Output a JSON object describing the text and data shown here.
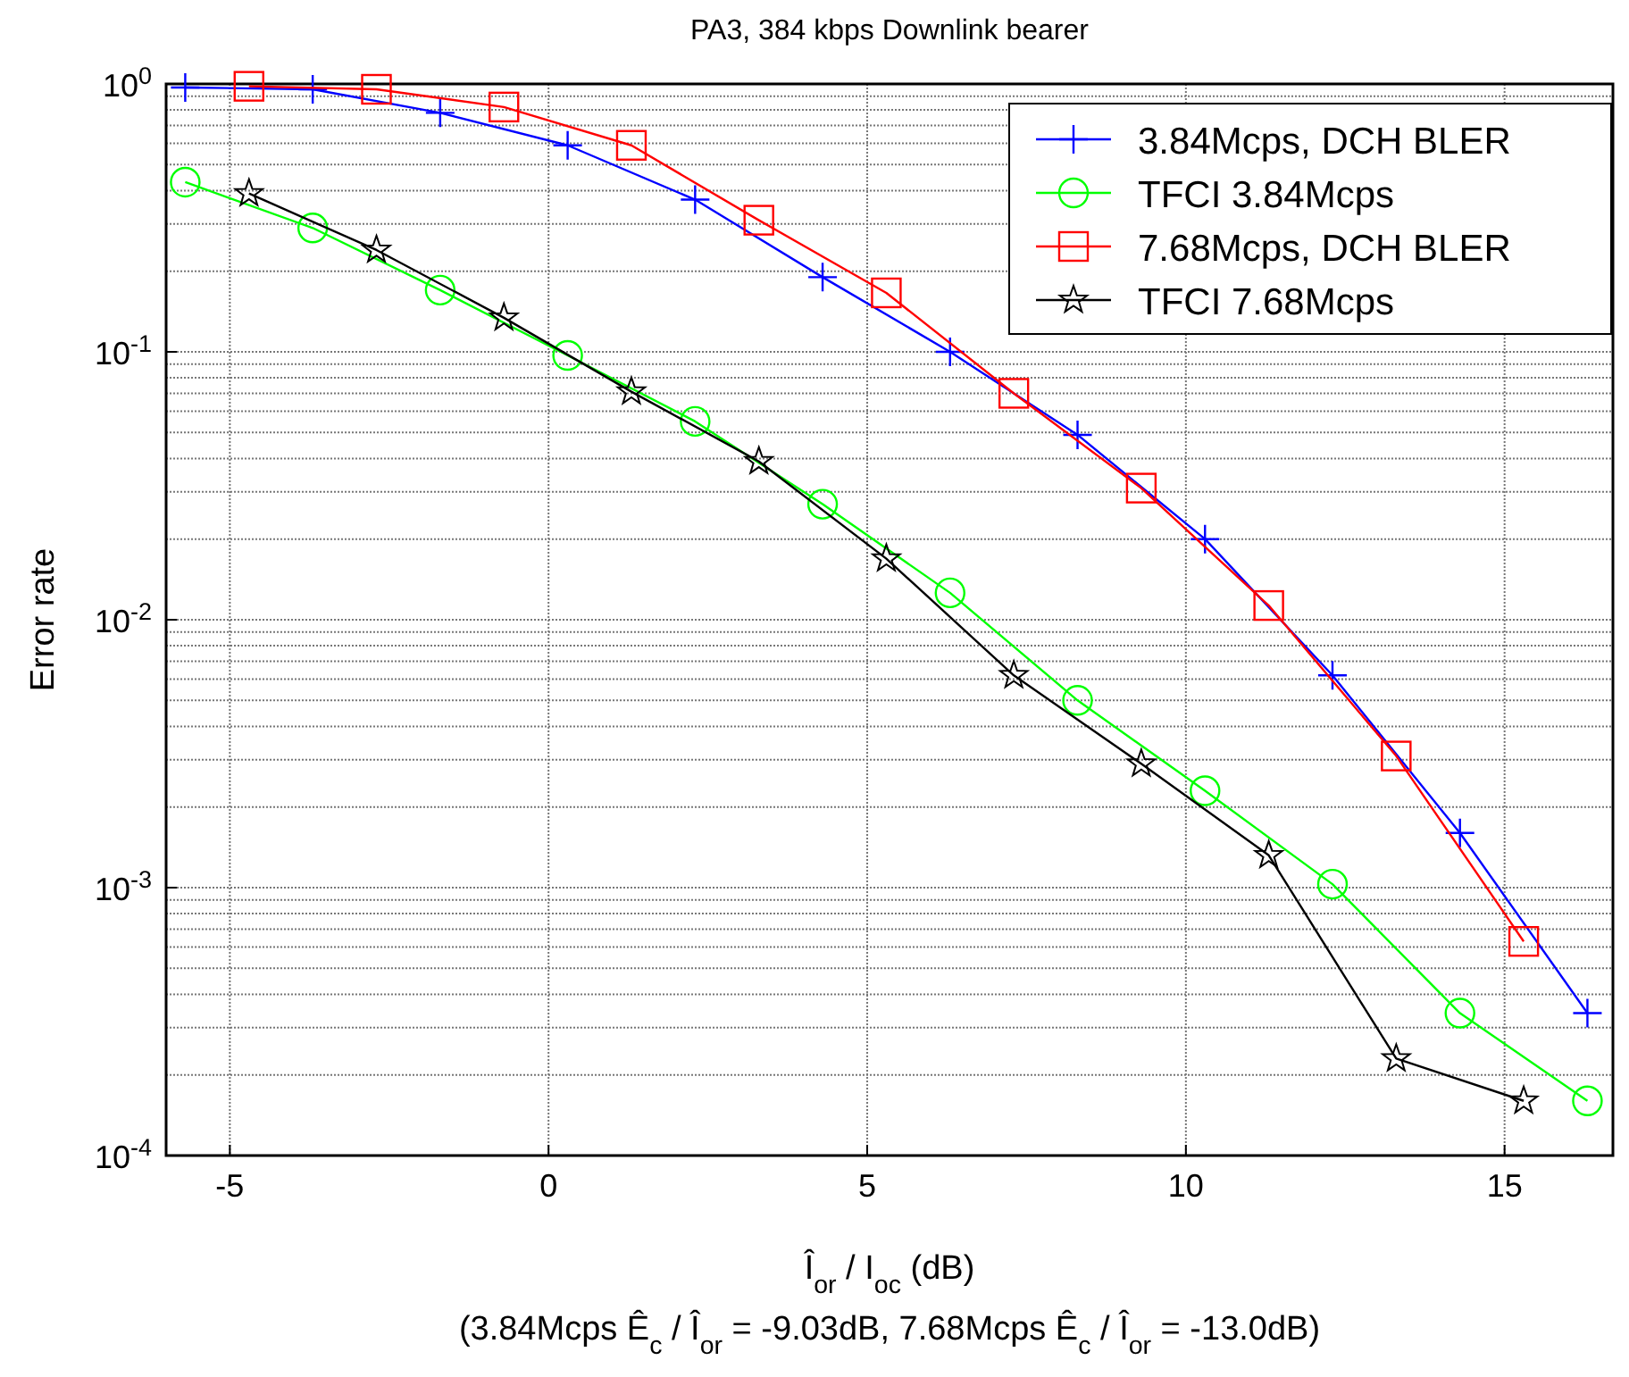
{
  "chart_data": {
    "type": "line",
    "title": "PA3, 384 kbps Downlink bearer",
    "xlabel": "Î$_{or}$ / I$_{oc}$ (dB)",
    "ylabel": "Error rate",
    "annotations": [
      "(3.84Mcps Ê$_{c}$ / Î$_{or}$ = -9.03dB, 7.68Mcps Ê$_{c}$ / Î$_{or}$ = -13.0dB)"
    ],
    "log": "y",
    "grid": true,
    "legend": "top right",
    "xlim": [
      -6,
      16.7
    ],
    "xticks": [
      -5,
      0,
      5,
      10,
      15
    ],
    "ylim": [
      0.0001,
      1
    ],
    "yticks": [
      {
        "value": 1,
        "label": "10$^{0}$"
      },
      {
        "value": 0.1,
        "label": "10$^{-1}$"
      },
      {
        "value": 0.01,
        "label": "10$^{-2}$"
      },
      {
        "value": 0.001,
        "label": "10$^{-3}$"
      },
      {
        "value": 0.0001,
        "label": "10$^{-4}$"
      }
    ],
    "series": [
      {
        "name": "3.84Mcps, DCH BLER",
        "color": "#0000ff",
        "marker": "cross",
        "x": [
          -5.7,
          -3.7,
          -1.7,
          0.3,
          2.3,
          4.3,
          6.3,
          8.3,
          10.3,
          12.3,
          14.3,
          16.3
        ],
        "values": [
          0.97,
          0.955,
          0.78,
          0.59,
          0.37,
          0.19,
          0.1,
          0.049,
          0.02,
          0.0062,
          0.0016,
          0.00034
        ]
      },
      {
        "name": "TFCI 3.84Mcps",
        "color": "#00ff00",
        "marker": "circle",
        "x": [
          -5.7,
          -3.7,
          -1.7,
          0.3,
          2.3,
          4.3,
          6.3,
          8.3,
          10.3,
          12.3,
          14.3,
          16.3
        ],
        "values": [
          0.43,
          0.29,
          0.17,
          0.097,
          0.055,
          0.027,
          0.0126,
          0.005,
          0.0023,
          0.00103,
          0.00034,
          0.00016
        ]
      },
      {
        "name": "7.68Mcps, DCH BLER",
        "color": "#ff0000",
        "marker": "square",
        "x": [
          -4.7,
          -2.7,
          -0.7,
          1.3,
          3.3,
          5.3,
          7.3,
          9.3,
          11.3,
          13.3,
          15.3
        ],
        "values": [
          0.98,
          0.955,
          0.82,
          0.59,
          0.31,
          0.166,
          0.07,
          0.031,
          0.0113,
          0.0031,
          0.00063
        ]
      },
      {
        "name": "TFCI 7.68Mcps",
        "color": "#000000",
        "marker": "star",
        "x": [
          -4.7,
          -2.7,
          -0.7,
          1.3,
          3.3,
          5.3,
          7.3,
          9.3,
          11.3,
          13.3,
          15.3
        ],
        "values": [
          0.39,
          0.24,
          0.134,
          0.071,
          0.039,
          0.0169,
          0.0062,
          0.0029,
          0.00132,
          0.00023,
          0.00016
        ]
      }
    ]
  }
}
